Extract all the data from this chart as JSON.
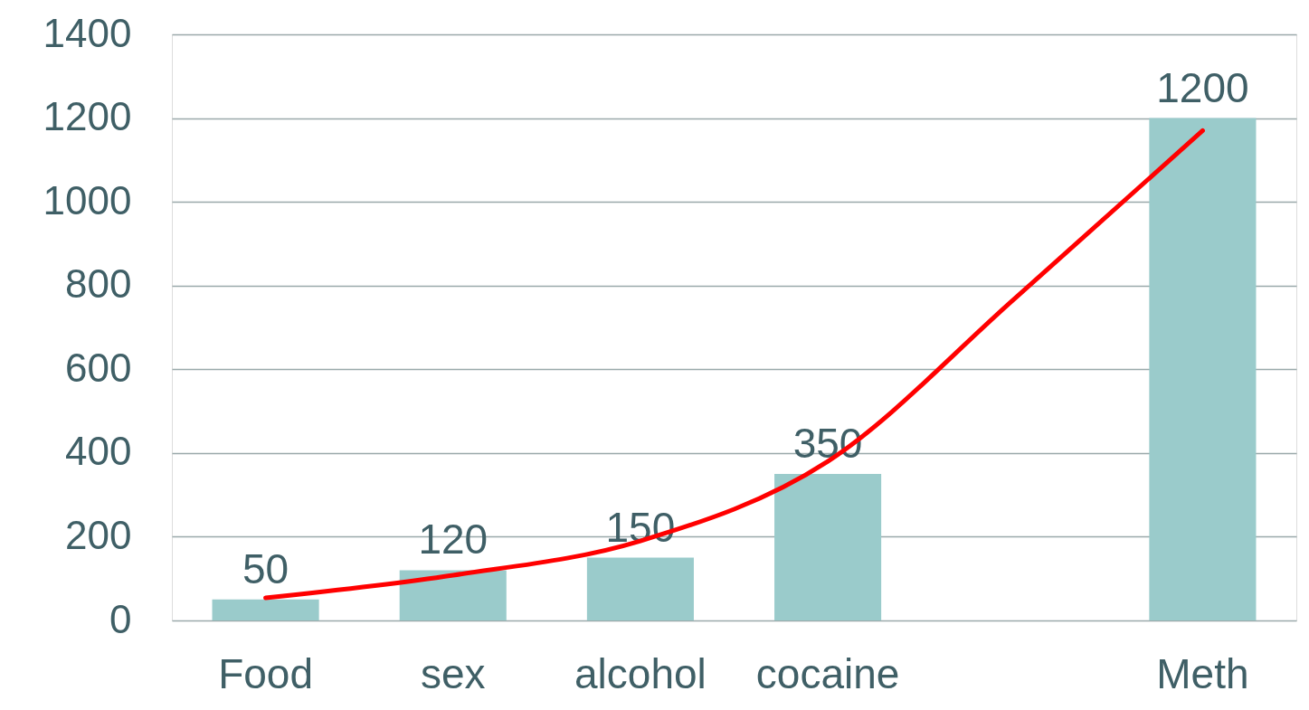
{
  "chart_data": {
    "type": "bar",
    "categories": [
      "Food",
      "sex",
      "alcohol",
      "cocaine",
      null,
      "Meth"
    ],
    "series": [
      {
        "color": "#9acbcb",
        "values": [
          50,
          120,
          150,
          350,
          null,
          1200
        ],
        "value_labels": [
          "50",
          "120",
          "150",
          "350",
          null,
          "1200"
        ]
      },
      {
        "type": "line",
        "color": "#ff0000",
        "values": [
          54,
          108,
          190,
          380,
          770,
          1170
        ]
      }
    ],
    "ylim": [
      0,
      1400
    ],
    "yticks": [
      0,
      200,
      400,
      600,
      800,
      1000,
      1200,
      1400
    ],
    "grid": "y"
  }
}
